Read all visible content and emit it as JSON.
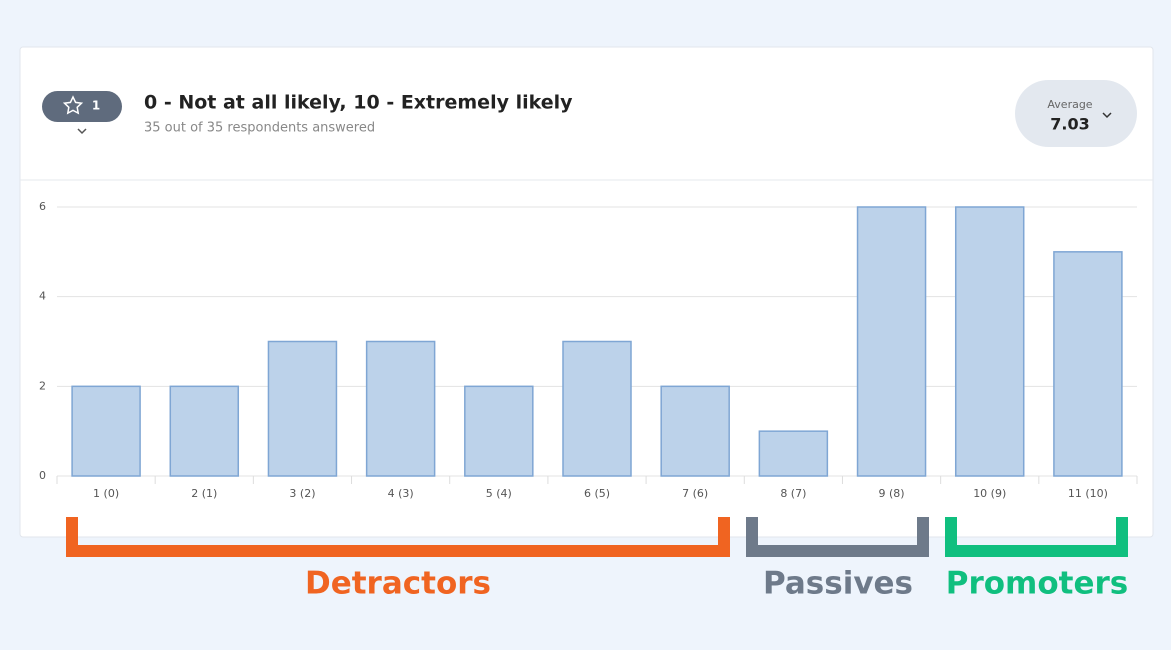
{
  "header": {
    "badge": "1",
    "title": "0 - Not at all likely, 10 - Extremely likely",
    "subtitle": "35 out of 35 respondents answered",
    "average_label": "Average",
    "average_value": "7.03"
  },
  "chart_data": {
    "type": "bar",
    "categories": [
      "1 (0)",
      "2 (1)",
      "3 (2)",
      "4 (3)",
      "5 (4)",
      "6 (5)",
      "7 (6)",
      "8 (7)",
      "9 (8)",
      "10 (9)",
      "11 (10)"
    ],
    "values": [
      2,
      2,
      3,
      3,
      2,
      3,
      2,
      1,
      6,
      6,
      5
    ],
    "color": "#bcd2ea",
    "ylim": [
      0,
      6
    ],
    "yticks": [
      0,
      2,
      4,
      6
    ],
    "grid": true
  },
  "groups": [
    {
      "label": "Detractors",
      "color": "#f06421"
    },
    {
      "label": "Passives",
      "color": "#6e7a8a"
    },
    {
      "label": "Promoters",
      "color": "#10bf7f"
    }
  ]
}
